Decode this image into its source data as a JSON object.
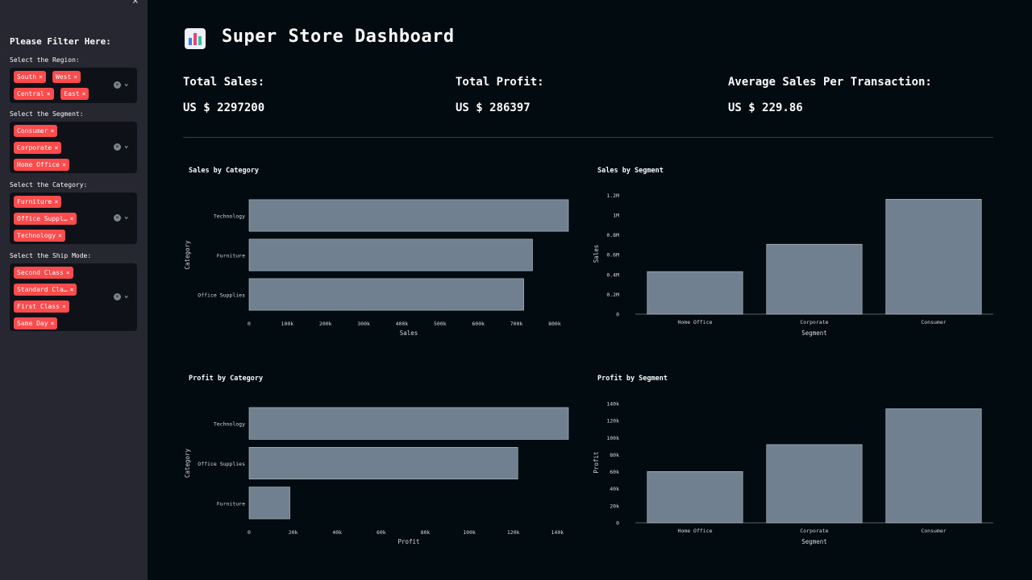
{
  "sidebar": {
    "title": "Please Filter Here:",
    "close": "×",
    "filters": [
      {
        "label": "Select the Region:",
        "tags": [
          "South",
          "West",
          "Central",
          "East"
        ]
      },
      {
        "label": "Select the Segment:",
        "tags": [
          "Consumer",
          "Corporate",
          "Home Office"
        ]
      },
      {
        "label": "Select the Category:",
        "tags": [
          "Furniture",
          "Office Suppl…",
          "Technology"
        ]
      },
      {
        "label": "Select the Ship Mode:",
        "tags": [
          "Second Class",
          "Standard Cla…",
          "First Class",
          "Same Day"
        ]
      }
    ]
  },
  "header": {
    "title": "Super Store Dashboard",
    "icon": "bar-chart-emoji"
  },
  "kpis": {
    "total_sales_label": "Total Sales:",
    "total_sales_value": "US $ 2297200",
    "total_profit_label": "Total Profit:",
    "total_profit_value": "US $ 286397",
    "avg_label": "Average Sales Per Transaction:",
    "avg_value": "US $ 229.86"
  },
  "colors": {
    "accent": "#ff4b4b",
    "bar": "#708090",
    "background": "#020b0f",
    "sidebar": "#262730"
  },
  "chart_data": [
    {
      "type": "bar",
      "orientation": "horizontal",
      "title": "Sales by Category",
      "categories": [
        "Technology",
        "Furniture",
        "Office Supplies"
      ],
      "values": [
        836000,
        742000,
        719000
      ],
      "xlabel": "Sales",
      "ylabel": "Category",
      "xlim": [
        0,
        836000
      ],
      "ticks": [
        0,
        100000,
        200000,
        300000,
        400000,
        500000,
        600000,
        700000,
        800000
      ],
      "tick_labels": [
        "0",
        "100k",
        "200k",
        "300k",
        "400k",
        "500k",
        "600k",
        "700k",
        "800k"
      ]
    },
    {
      "type": "bar",
      "orientation": "vertical",
      "title": "Sales by Segment",
      "categories": [
        "Home Office",
        "Corporate",
        "Consumer"
      ],
      "values": [
        430000,
        706000,
        1160000
      ],
      "xlabel": "Segment",
      "ylabel": "Sales",
      "ylim": [
        0,
        1220000
      ],
      "ticks": [
        0,
        200000,
        400000,
        600000,
        800000,
        1000000,
        1200000
      ],
      "tick_labels": [
        "0",
        "0.2M",
        "0.4M",
        "0.6M",
        "0.8M",
        "1M",
        "1.2M"
      ]
    },
    {
      "type": "bar",
      "orientation": "horizontal",
      "title": "Profit by Category",
      "categories": [
        "Technology",
        "Office Supplies",
        "Furniture"
      ],
      "values": [
        145000,
        122000,
        18500
      ],
      "xlabel": "Profit",
      "ylabel": "Category",
      "xlim": [
        0,
        145000
      ],
      "ticks": [
        0,
        20000,
        40000,
        60000,
        80000,
        100000,
        120000,
        140000
      ],
      "tick_labels": [
        "0",
        "20k",
        "40k",
        "60k",
        "80k",
        "100k",
        "120k",
        "140k"
      ]
    },
    {
      "type": "bar",
      "orientation": "vertical",
      "title": "Profit by Segment",
      "categories": [
        "Home Office",
        "Corporate",
        "Consumer"
      ],
      "values": [
        60300,
        91900,
        134000
      ],
      "xlabel": "Segment",
      "ylabel": "Profit",
      "ylim": [
        0,
        142000
      ],
      "ticks": [
        0,
        20000,
        40000,
        60000,
        80000,
        100000,
        120000,
        140000
      ],
      "tick_labels": [
        "0",
        "20k",
        "40k",
        "60k",
        "80k",
        "100k",
        "120k",
        "140k"
      ]
    }
  ]
}
